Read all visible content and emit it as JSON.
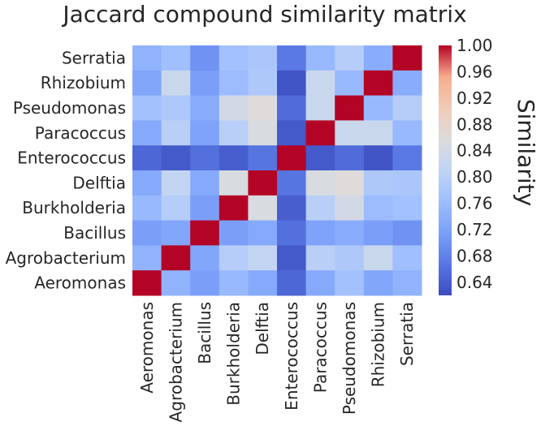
{
  "chart_data": {
    "type": "heatmap",
    "title": "Jaccard compound similarity matrix",
    "xlabel": "",
    "ylabel": "",
    "colorbar_label": "Similarity",
    "colormap": "coolwarm",
    "vmin": 0.62,
    "vmax": 1.0,
    "colorbar_ticks": [
      "0.64",
      "0.68",
      "0.72",
      "0.76",
      "0.80",
      "0.84",
      "0.88",
      "0.92",
      "0.96",
      "1.00"
    ],
    "x_labels": [
      "Aeromonas",
      "Agrobacterium",
      "Bacillus",
      "Burkholderia",
      "Delftia",
      "Enterococcus",
      "Paracoccus",
      "Pseudomonas",
      "Rhizobium",
      "Serratia"
    ],
    "y_labels": [
      "Serratia",
      "Rhizobium",
      "Pseudomonas",
      "Paracoccus",
      "Enterococcus",
      "Delftia",
      "Burkholderia",
      "Bacillus",
      "Agrobacterium",
      "Aeromonas"
    ],
    "values": [
      [
        0.745,
        0.765,
        0.7,
        0.768,
        0.78,
        0.67,
        0.755,
        0.795,
        0.735,
        1.0
      ],
      [
        0.725,
        0.825,
        0.715,
        0.76,
        0.785,
        0.63,
        0.825,
        0.755,
        1.0,
        0.735
      ],
      [
        0.77,
        0.785,
        0.735,
        0.84,
        0.86,
        0.655,
        0.825,
        1.0,
        0.755,
        0.795
      ],
      [
        0.73,
        0.8,
        0.72,
        0.8,
        0.85,
        0.635,
        1.0,
        0.825,
        0.825,
        0.755
      ],
      [
        0.65,
        0.635,
        0.66,
        0.64,
        0.665,
        1.0,
        0.635,
        0.655,
        0.63,
        0.67
      ],
      [
        0.73,
        0.815,
        0.73,
        0.85,
        1.0,
        0.665,
        0.85,
        0.86,
        0.785,
        0.78
      ],
      [
        0.755,
        0.795,
        0.715,
        1.0,
        0.85,
        0.64,
        0.8,
        0.84,
        0.76,
        0.768
      ],
      [
        0.715,
        0.725,
        1.0,
        0.715,
        0.73,
        0.66,
        0.72,
        0.735,
        0.715,
        0.7
      ],
      [
        0.745,
        1.0,
        0.725,
        0.795,
        0.815,
        0.635,
        0.8,
        0.785,
        0.825,
        0.765
      ],
      [
        1.0,
        0.745,
        0.715,
        0.755,
        0.73,
        0.65,
        0.73,
        0.77,
        0.725,
        0.745
      ]
    ]
  }
}
